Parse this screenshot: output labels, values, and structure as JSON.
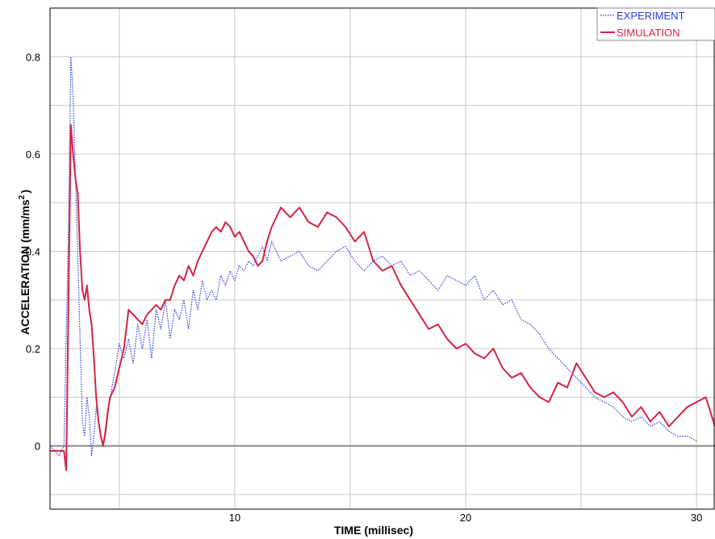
{
  "chart_data": {
    "type": "line",
    "xlabel": "TIME (millisec)",
    "ylabel_main": "ACCELERATION (mm/ms",
    "ylabel_sup": "2",
    "ylabel_end": ")",
    "xlim": [
      2,
      30.8
    ],
    "ylim": [
      -0.13,
      0.9
    ],
    "x_ticks": [
      {
        "value": 10,
        "label": "10"
      },
      {
        "value": 20,
        "label": "20"
      },
      {
        "value": 30,
        "label": "30"
      }
    ],
    "x_grid": [
      5,
      10,
      15,
      20,
      25,
      30
    ],
    "y_ticks": [
      {
        "value": 0,
        "label": "0"
      },
      {
        "value": 0.2,
        "label": "0.2"
      },
      {
        "value": 0.4,
        "label": "0.4"
      },
      {
        "value": 0.6,
        "label": "0.6"
      },
      {
        "value": 0.8,
        "label": "0.8"
      }
    ],
    "y_grid": [
      -0.1,
      0,
      0.1,
      0.2,
      0.3,
      0.4,
      0.5,
      0.6,
      0.7,
      0.8
    ],
    "grid": true,
    "legend_position": "top-right",
    "colors": {
      "experiment": "#2b3de0",
      "simulation": "#d42346",
      "zero_line": "#888888",
      "grid": "#c8c8c8"
    },
    "series": [
      {
        "name": "EXPERIMENT",
        "style": "dotted",
        "color": "#2b3de0",
        "x": [
          2.0,
          2.2,
          2.4,
          2.6,
          2.8,
          2.9,
          3.0,
          3.1,
          3.2,
          3.3,
          3.4,
          3.5,
          3.6,
          3.7,
          3.8,
          3.9,
          4.0,
          4.1,
          4.2,
          4.3,
          4.4,
          4.5,
          4.6,
          4.8,
          5.0,
          5.2,
          5.4,
          5.6,
          5.8,
          6.0,
          6.2,
          6.4,
          6.6,
          6.8,
          7.0,
          7.2,
          7.4,
          7.6,
          7.8,
          8.0,
          8.2,
          8.4,
          8.6,
          8.8,
          9.0,
          9.2,
          9.4,
          9.6,
          9.8,
          10.0,
          10.2,
          10.4,
          10.6,
          10.8,
          11.0,
          11.2,
          11.4,
          11.6,
          11.8,
          12.0,
          12.4,
          12.8,
          13.2,
          13.6,
          14.0,
          14.4,
          14.8,
          15.2,
          15.6,
          16.0,
          16.4,
          16.8,
          17.2,
          17.6,
          18.0,
          18.4,
          18.8,
          19.2,
          19.6,
          20.0,
          20.4,
          20.8,
          21.2,
          21.6,
          22.0,
          22.4,
          22.8,
          23.2,
          23.6,
          24.0,
          24.4,
          24.8,
          25.2,
          25.6,
          26.0,
          26.4,
          26.8,
          27.2,
          27.6,
          28.0,
          28.4,
          28.8,
          29.2,
          29.6,
          30.0
        ],
        "y": [
          0.0,
          -0.01,
          -0.02,
          0.0,
          0.45,
          0.8,
          0.72,
          0.55,
          0.4,
          0.22,
          0.05,
          0.02,
          0.1,
          0.06,
          -0.02,
          0.02,
          0.08,
          0.05,
          0.02,
          0.0,
          0.02,
          0.06,
          0.1,
          0.15,
          0.21,
          0.18,
          0.22,
          0.17,
          0.25,
          0.2,
          0.26,
          0.18,
          0.28,
          0.24,
          0.3,
          0.22,
          0.28,
          0.26,
          0.3,
          0.24,
          0.32,
          0.28,
          0.34,
          0.3,
          0.32,
          0.3,
          0.35,
          0.33,
          0.36,
          0.34,
          0.37,
          0.36,
          0.38,
          0.37,
          0.39,
          0.41,
          0.38,
          0.42,
          0.4,
          0.38,
          0.39,
          0.4,
          0.37,
          0.36,
          0.38,
          0.4,
          0.41,
          0.38,
          0.36,
          0.38,
          0.39,
          0.37,
          0.38,
          0.35,
          0.36,
          0.34,
          0.32,
          0.35,
          0.34,
          0.33,
          0.35,
          0.3,
          0.32,
          0.29,
          0.3,
          0.26,
          0.25,
          0.23,
          0.2,
          0.18,
          0.16,
          0.14,
          0.12,
          0.1,
          0.09,
          0.08,
          0.06,
          0.05,
          0.06,
          0.04,
          0.05,
          0.03,
          0.02,
          0.02,
          0.01
        ]
      },
      {
        "name": "SIMULATION",
        "style": "solid",
        "color": "#d42346",
        "x": [
          2.0,
          2.3,
          2.6,
          2.7,
          2.8,
          2.9,
          3.0,
          3.1,
          3.2,
          3.3,
          3.4,
          3.5,
          3.6,
          3.7,
          3.8,
          3.9,
          4.0,
          4.1,
          4.2,
          4.3,
          4.4,
          4.5,
          4.6,
          4.8,
          5.0,
          5.2,
          5.4,
          5.6,
          5.8,
          6.0,
          6.2,
          6.4,
          6.6,
          6.8,
          7.0,
          7.2,
          7.4,
          7.6,
          7.8,
          8.0,
          8.2,
          8.4,
          8.6,
          8.8,
          9.0,
          9.2,
          9.4,
          9.6,
          9.8,
          10.0,
          10.2,
          10.4,
          10.6,
          10.8,
          11.0,
          11.2,
          11.4,
          11.6,
          11.8,
          12.0,
          12.4,
          12.8,
          13.2,
          13.6,
          14.0,
          14.4,
          14.8,
          15.2,
          15.6,
          16.0,
          16.4,
          16.8,
          17.2,
          17.6,
          18.0,
          18.4,
          18.8,
          19.2,
          19.6,
          20.0,
          20.4,
          20.8,
          21.2,
          21.6,
          22.0,
          22.4,
          22.8,
          23.2,
          23.6,
          24.0,
          24.4,
          24.8,
          25.2,
          25.6,
          26.0,
          26.4,
          26.8,
          27.2,
          27.6,
          28.0,
          28.4,
          28.8,
          29.2,
          29.6,
          30.0,
          30.4,
          30.8
        ],
        "y": [
          -0.01,
          -0.01,
          -0.01,
          -0.05,
          0.3,
          0.66,
          0.6,
          0.55,
          0.52,
          0.4,
          0.32,
          0.3,
          0.33,
          0.28,
          0.25,
          0.18,
          0.1,
          0.05,
          0.02,
          0.0,
          0.03,
          0.07,
          0.1,
          0.12,
          0.16,
          0.2,
          0.28,
          0.27,
          0.26,
          0.25,
          0.27,
          0.28,
          0.29,
          0.28,
          0.3,
          0.3,
          0.33,
          0.35,
          0.34,
          0.37,
          0.35,
          0.38,
          0.4,
          0.42,
          0.44,
          0.45,
          0.44,
          0.46,
          0.45,
          0.43,
          0.44,
          0.42,
          0.4,
          0.39,
          0.37,
          0.38,
          0.42,
          0.45,
          0.47,
          0.49,
          0.47,
          0.49,
          0.46,
          0.45,
          0.48,
          0.47,
          0.45,
          0.42,
          0.44,
          0.38,
          0.36,
          0.37,
          0.33,
          0.3,
          0.27,
          0.24,
          0.25,
          0.22,
          0.2,
          0.21,
          0.19,
          0.18,
          0.2,
          0.16,
          0.14,
          0.15,
          0.12,
          0.1,
          0.09,
          0.13,
          0.12,
          0.17,
          0.14,
          0.11,
          0.1,
          0.11,
          0.09,
          0.06,
          0.08,
          0.05,
          0.07,
          0.04,
          0.06,
          0.08,
          0.09,
          0.1,
          0.04
        ]
      }
    ]
  }
}
